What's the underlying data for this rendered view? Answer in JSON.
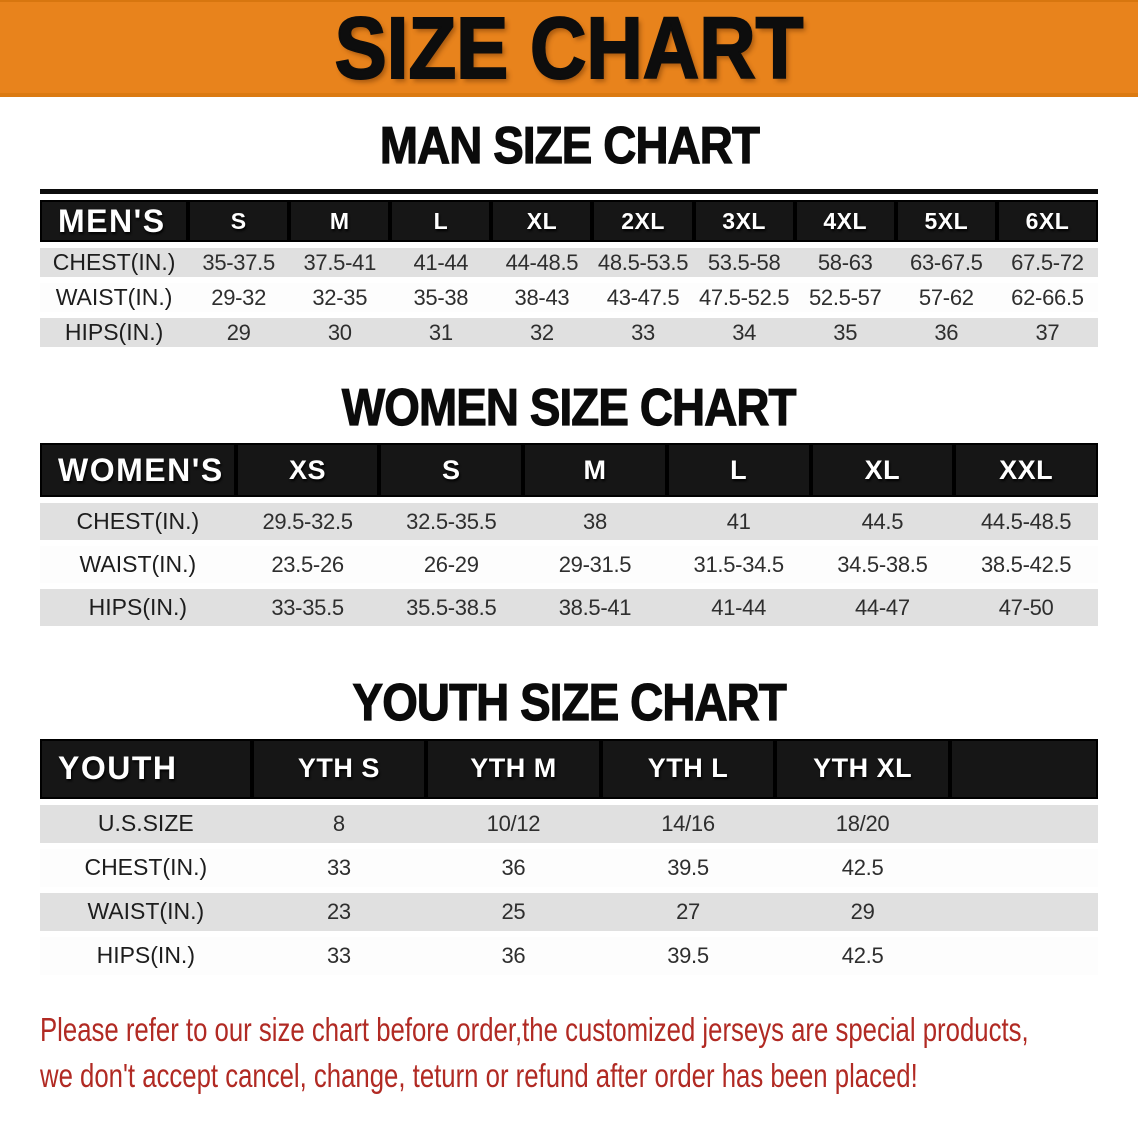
{
  "banner": {
    "title": "SIZE CHART",
    "bg": "#e8831c"
  },
  "sections": [
    {
      "title": "MAN SIZE CHART",
      "table": {
        "header_label": "MEN'S",
        "columns": [
          "S",
          "M",
          "L",
          "XL",
          "2XL",
          "3XL",
          "4XL",
          "5XL",
          "6XL"
        ],
        "rows": [
          {
            "label": "CHEST(IN.)",
            "values": [
              "35-37.5",
              "37.5-41",
              "41-44",
              "44-48.5",
              "48.5-53.5",
              "53.5-58",
              "58-63",
              "63-67.5",
              "67.5-72"
            ]
          },
          {
            "label": "WAIST(IN.)",
            "values": [
              "29-32",
              "32-35",
              "35-38",
              "38-43",
              "43-47.5",
              "47.5-52.5",
              "52.5-57",
              "57-62",
              "62-66.5"
            ]
          },
          {
            "label": "HIPS(IN.)",
            "values": [
              "29",
              "30",
              "31",
              "32",
              "33",
              "34",
              "35",
              "36",
              "37"
            ]
          }
        ]
      }
    },
    {
      "title": "WOMEN SIZE CHART",
      "table": {
        "header_label": "WOMEN'S",
        "columns": [
          "XS",
          "S",
          "M",
          "L",
          "XL",
          "XXL"
        ],
        "rows": [
          {
            "label": "CHEST(IN.)",
            "values": [
              "29.5-32.5",
              "32.5-35.5",
              "38",
              "41",
              "44.5",
              "44.5-48.5"
            ]
          },
          {
            "label": "WAIST(IN.)",
            "values": [
              "23.5-26",
              "26-29",
              "29-31.5",
              "31.5-34.5",
              "34.5-38.5",
              "38.5-42.5"
            ]
          },
          {
            "label": "HIPS(IN.)",
            "values": [
              "33-35.5",
              "35.5-38.5",
              "38.5-41",
              "41-44",
              "44-47",
              "47-50"
            ]
          }
        ]
      }
    },
    {
      "title": "YOUTH SIZE CHART",
      "table": {
        "header_label": "YOUTH",
        "columns": [
          "YTH S",
          "YTH M",
          "YTH L",
          "YTH XL"
        ],
        "rows": [
          {
            "label": "U.S.SIZE",
            "values": [
              "8",
              "10/12",
              "14/16",
              "18/20"
            ]
          },
          {
            "label": "CHEST(IN.)",
            "values": [
              "33",
              "36",
              "39.5",
              "42.5"
            ]
          },
          {
            "label": "WAIST(IN.)",
            "values": [
              "23",
              "25",
              "27",
              "29"
            ]
          },
          {
            "label": "HIPS(IN.)",
            "values": [
              "33",
              "36",
              "39.5",
              "42.5"
            ]
          }
        ]
      }
    }
  ],
  "footer": {
    "line1": "Please refer to our size chart before order,the customized jerseys are special products,",
    "line2": "we don't accept cancel, change, teturn or refund after order has been placed!",
    "color": "#b12a23"
  }
}
